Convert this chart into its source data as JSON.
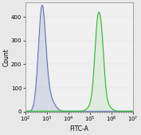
{
  "xlabel": "FITC-A",
  "ylabel": "Count",
  "xlim_log": [
    2,
    7
  ],
  "ylim": [
    0,
    460
  ],
  "yticks": [
    0,
    100,
    200,
    300,
    400
  ],
  "blue_peak_log": 2.78,
  "blue_sigma": 0.17,
  "blue_height": 420,
  "blue_color": "#5060aa",
  "blue_fill": "#8899cc",
  "blue_fill_alpha": 0.25,
  "green_peak1_log": 5.35,
  "green_sigma1": 0.13,
  "green_height1": 265,
  "green_peak2_log": 5.55,
  "green_sigma2": 0.12,
  "green_height2": 200,
  "green_color": "#22bb22",
  "green_fill_alpha": 0.08,
  "background_color": "#e8e8e8",
  "plot_bg": "#f0f0f0",
  "label_fontsize": 5.5,
  "tick_fontsize": 5.0
}
